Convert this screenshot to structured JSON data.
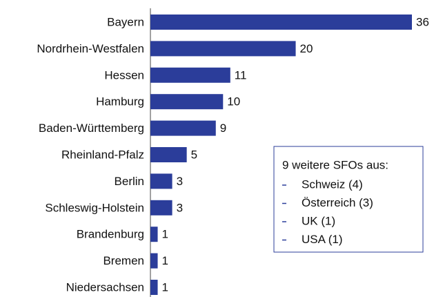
{
  "chart_data": {
    "type": "hbar",
    "categories": [
      "Bayern",
      "Nordrhein-Westfalen",
      "Hessen",
      "Hamburg",
      "Baden-Württemberg",
      "Rheinland-Pfalz",
      "Berlin",
      "Schleswig-Holstein",
      "Brandenburg",
      "Bremen",
      "Niedersachsen"
    ],
    "values": [
      36,
      20,
      11,
      10,
      9,
      5,
      3,
      3,
      1,
      1,
      1
    ],
    "color": "#2b3d9a",
    "annotation": {
      "title": "9 weitere SFOs aus:",
      "items": [
        "Schweiz (4)",
        "Österreich (3)",
        "UK (1)",
        "USA (1)"
      ]
    }
  }
}
